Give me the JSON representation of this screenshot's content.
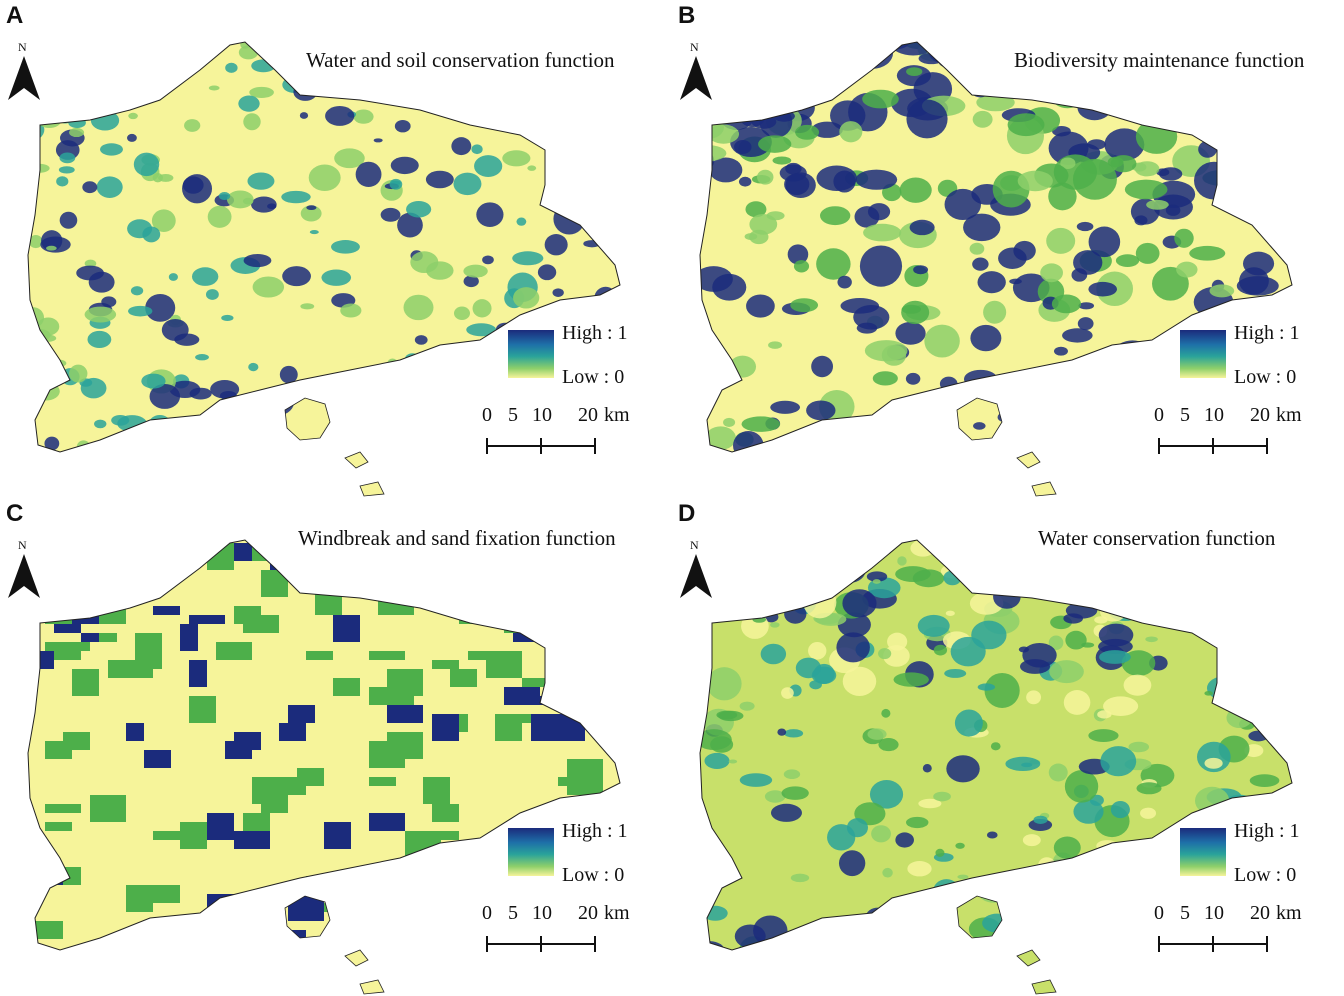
{
  "panels": [
    {
      "letter": "A",
      "title": "Water and soil conservation function",
      "theme": "soil"
    },
    {
      "letter": "B",
      "title": "Biodiversity maintenance function",
      "theme": "bio"
    },
    {
      "letter": "C",
      "title": "Windbreak and sand fixation function",
      "theme": "wind"
    },
    {
      "letter": "D",
      "title": "Water conservation function",
      "theme": "water"
    }
  ],
  "north_arrow": {
    "letter": "N"
  },
  "legend": {
    "high": "High : 1",
    "low": "Low : 0"
  },
  "scale_bar": {
    "labels": [
      "0",
      "5",
      "10",
      "20",
      "km"
    ]
  },
  "colors": {
    "high": "#1b2b7c",
    "mid_high": "#1e6fa8",
    "mid": "#2aa39a",
    "mid_low": "#8dcf6a",
    "low": "#f6f49a",
    "green": "#4daf4a",
    "outline": "#222222"
  }
}
